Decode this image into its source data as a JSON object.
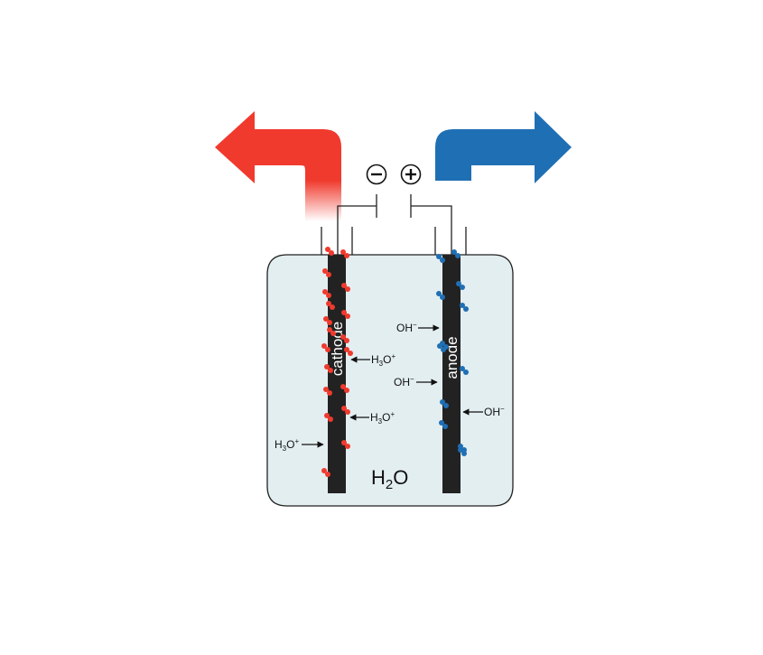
{
  "electrodes": {
    "cathode": {
      "label": "cathode"
    },
    "anode": {
      "label": "anode"
    }
  },
  "terminals": {
    "negative": "−",
    "positive": "+"
  },
  "electrolyte": {
    "base": "H",
    "subscript": "2",
    "tail": "O"
  },
  "ions": {
    "hydronium": {
      "base": "H",
      "sub": "3",
      "mid": "O",
      "sup": "+"
    },
    "hydroxide": {
      "base": "OH",
      "sup": "−"
    }
  },
  "colors": {
    "cathode_gas": "#f03a2e",
    "anode_gas": "#1f6fb4",
    "electrode": "#222222",
    "water": "#e3eef1"
  }
}
